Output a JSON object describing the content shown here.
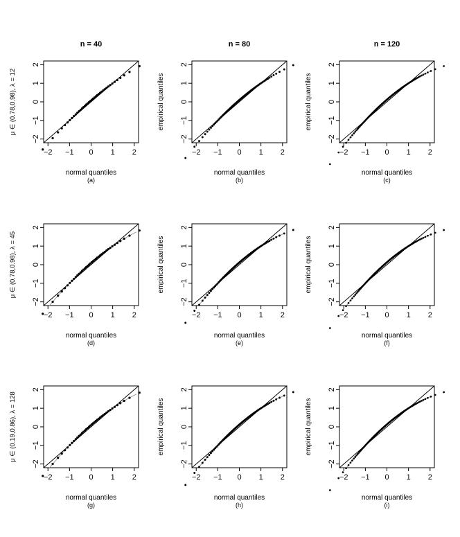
{
  "figure": {
    "column_titles": [
      "n = 40",
      "n = 80",
      "n = 120"
    ],
    "row_labels": [
      "μ ∈ (0.78,0.98), λ = 12",
      "μ ∈ (0.78,0.98), λ = 45",
      "μ ∈ (0.19,0.86), λ = 128"
    ],
    "xlabel": "normal quantiles",
    "ylabel": "empirical quantiles",
    "panel_letters": [
      "(a)",
      "(b)",
      "(c)",
      "(d)",
      "(e)",
      "(f)",
      "(g)",
      "(h)",
      "(i)"
    ],
    "tick_labels": [
      "−2",
      "−1",
      "0",
      "1",
      "2"
    ]
  },
  "chart_data": [
    {
      "id": "a",
      "type": "scatter",
      "title": "n = 40",
      "subtitle": "(a)",
      "xlabel": "normal quantiles",
      "ylabel": "μ ∈ (0.78,0.98), λ = 12",
      "xlim": [
        -2.2,
        2.2
      ],
      "ylim": [
        -2.2,
        2.2
      ],
      "reference_line": "y = x",
      "n": 40,
      "curvature": 0.08,
      "grey_curve": false
    },
    {
      "id": "b",
      "type": "scatter",
      "title": "n = 80",
      "subtitle": "(b)",
      "xlabel": "normal quantiles",
      "ylabel": "empirical quantiles",
      "xlim": [
        -2.2,
        2.2
      ],
      "ylim": [
        -2.2,
        2.2
      ],
      "reference_line": "y = x",
      "n": 80,
      "curvature": 0.1,
      "grey_curve": false
    },
    {
      "id": "c",
      "type": "scatter",
      "title": "n = 120",
      "subtitle": "(c)",
      "xlabel": "normal quantiles",
      "ylabel": "empirical quantiles",
      "xlim": [
        -2.2,
        2.2
      ],
      "ylim": [
        -2.2,
        2.2
      ],
      "reference_line": "y = x",
      "n": 120,
      "curvature": 0.12,
      "grey_curve": true
    },
    {
      "id": "d",
      "type": "scatter",
      "subtitle": "(d)",
      "xlabel": "normal quantiles",
      "ylabel": "μ ∈ (0.78,0.98), λ = 45",
      "xlim": [
        -2.2,
        2.2
      ],
      "ylim": [
        -2.2,
        2.2
      ],
      "reference_line": "y = x",
      "n": 40,
      "curvature": 0.1,
      "grey_curve": true
    },
    {
      "id": "e",
      "type": "scatter",
      "subtitle": "(e)",
      "xlabel": "normal quantiles",
      "ylabel": "empirical quantiles",
      "xlim": [
        -2.2,
        2.2
      ],
      "ylim": [
        -2.2,
        2.2
      ],
      "reference_line": "y = x",
      "n": 80,
      "curvature": 0.12,
      "grey_curve": true
    },
    {
      "id": "f",
      "type": "scatter",
      "subtitle": "(f)",
      "xlabel": "normal quantiles",
      "ylabel": "empirical quantiles",
      "xlim": [
        -2.2,
        2.2
      ],
      "ylim": [
        -2.2,
        2.2
      ],
      "reference_line": "y = x",
      "n": 120,
      "curvature": 0.13,
      "grey_curve": true
    },
    {
      "id": "g",
      "type": "scatter",
      "subtitle": "(g)",
      "xlabel": "normal quantiles",
      "ylabel": "μ ∈ (0.19,0.86), λ = 128",
      "xlim": [
        -2.2,
        2.2
      ],
      "ylim": [
        -2.2,
        2.2
      ],
      "reference_line": "y = x",
      "n": 40,
      "curvature": 0.1,
      "grey_curve": true
    },
    {
      "id": "h",
      "type": "scatter",
      "subtitle": "(h)",
      "xlabel": "normal quantiles",
      "ylabel": "empirical quantiles",
      "xlim": [
        -2.2,
        2.2
      ],
      "ylim": [
        -2.2,
        2.2
      ],
      "reference_line": "y = x",
      "n": 80,
      "curvature": 0.12,
      "grey_curve": true
    },
    {
      "id": "i",
      "type": "scatter",
      "subtitle": "(i)",
      "xlabel": "normal quantiles",
      "ylabel": "empirical quantiles",
      "xlim": [
        -2.2,
        2.2
      ],
      "ylim": [
        -2.2,
        2.2
      ],
      "reference_line": "y = x",
      "n": 120,
      "curvature": 0.13,
      "grey_curve": true
    }
  ]
}
